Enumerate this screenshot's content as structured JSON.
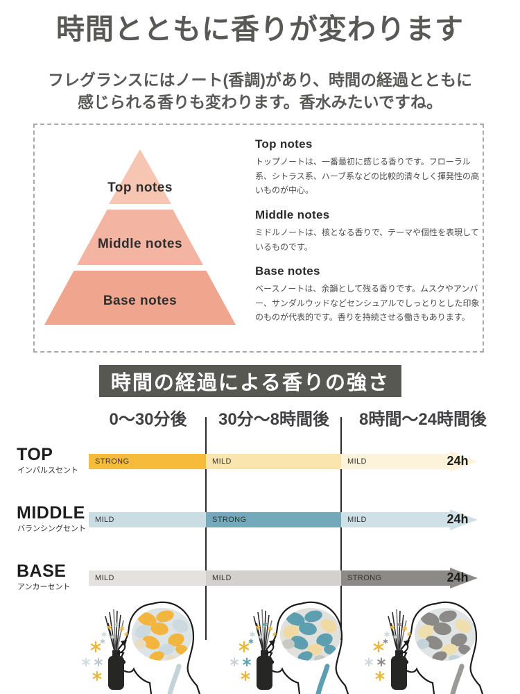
{
  "header": {
    "title": "時間とともに香りが変わります",
    "subtitle_line1": "フレグランスにはノート(香調)があり、時間の経過とともに",
    "subtitle_line2": "感じられる香りも変わります。香水みたいですね。"
  },
  "notes_box": {
    "pyramid": {
      "tiers": [
        {
          "label": "Top notes",
          "color": "#f6c6b3"
        },
        {
          "label": "Middle notes",
          "color": "#f3b5a1"
        },
        {
          "label": "Base notes",
          "color": "#f0a68e"
        }
      ]
    },
    "descriptions": [
      {
        "heading": "Top notes",
        "body": "トップノートは、一番最初に感じる香りです。フローラル系、シトラス系、ハーブ系などの比較的清々しく揮発性の高いものが中心。"
      },
      {
        "heading": "Middle notes",
        "body": "ミドルノートは、核となる香りで、テーマや個性を表現しているものです。"
      },
      {
        "heading": "Base notes",
        "body": "ベースノートは、余韻として残る香りです。ムスクやアンバー、サンダルウッドなどセンシュアルでしっとりとした印象のものが代表的です。香りを持続させる働きもあります。"
      }
    ]
  },
  "timeline": {
    "banner_title": "時間の経過による香りの強さ",
    "banner_bg": "#585853",
    "time_labels": [
      "0〜30分後",
      "30分〜8時間後",
      "8時間〜24時間後"
    ],
    "arrow_label": "24h",
    "rows": [
      {
        "name": "TOP",
        "sub": "インパルスセント",
        "segments": [
          {
            "label": "STRONG",
            "color": "#f7bb3b"
          },
          {
            "label": "MILD",
            "color": "#fae5ae"
          },
          {
            "label": "MILD",
            "color": "#fdf3da"
          }
        ]
      },
      {
        "name": "MIDDLE",
        "sub": "バランシングセント",
        "segments": [
          {
            "label": "MILD",
            "color": "#c9dde3"
          },
          {
            "label": "STRONG",
            "color": "#73a9ba"
          },
          {
            "label": "MILD",
            "color": "#cfe1e6"
          }
        ]
      },
      {
        "name": "BASE",
        "sub": "アンカーセント",
        "segments": [
          {
            "label": "MILD",
            "color": "#e4e2df"
          },
          {
            "label": "MILD",
            "color": "#d3d1ce"
          },
          {
            "label": "STRONG",
            "color": "#8b8a87"
          }
        ]
      }
    ]
  },
  "figures": {
    "phases": [
      {
        "name": "top-phase-head",
        "brain_primary": "#f2b540",
        "brain_secondary": "#ccdadf",
        "brain_tertiary": "#e8dcc4",
        "brain_base": "#dde4e6",
        "spine": "#c3d3d8",
        "particles": [
          "#e9b73a",
          "#b9c6cb",
          "#cfdbdf"
        ]
      },
      {
        "name": "middle-phase-head",
        "brain_primary": "#5d9fb0",
        "brain_secondary": "#f0d9a2",
        "brain_tertiary": "#c9c9c4",
        "brain_base": "#e0e1dd",
        "spine": "#5d9fb0",
        "particles": [
          "#e9b73a",
          "#5d9fb0",
          "#c5d2d6"
        ]
      },
      {
        "name": "base-phase-head",
        "brain_primary": "#8b8a87",
        "brain_secondary": "#f0dfae",
        "brain_tertiary": "#c3d3d8",
        "brain_base": "#e0e4e5",
        "spine": "#9a9a98",
        "particles": [
          "#e9b73a",
          "#8b8a87",
          "#ccd7da"
        ]
      }
    ]
  }
}
